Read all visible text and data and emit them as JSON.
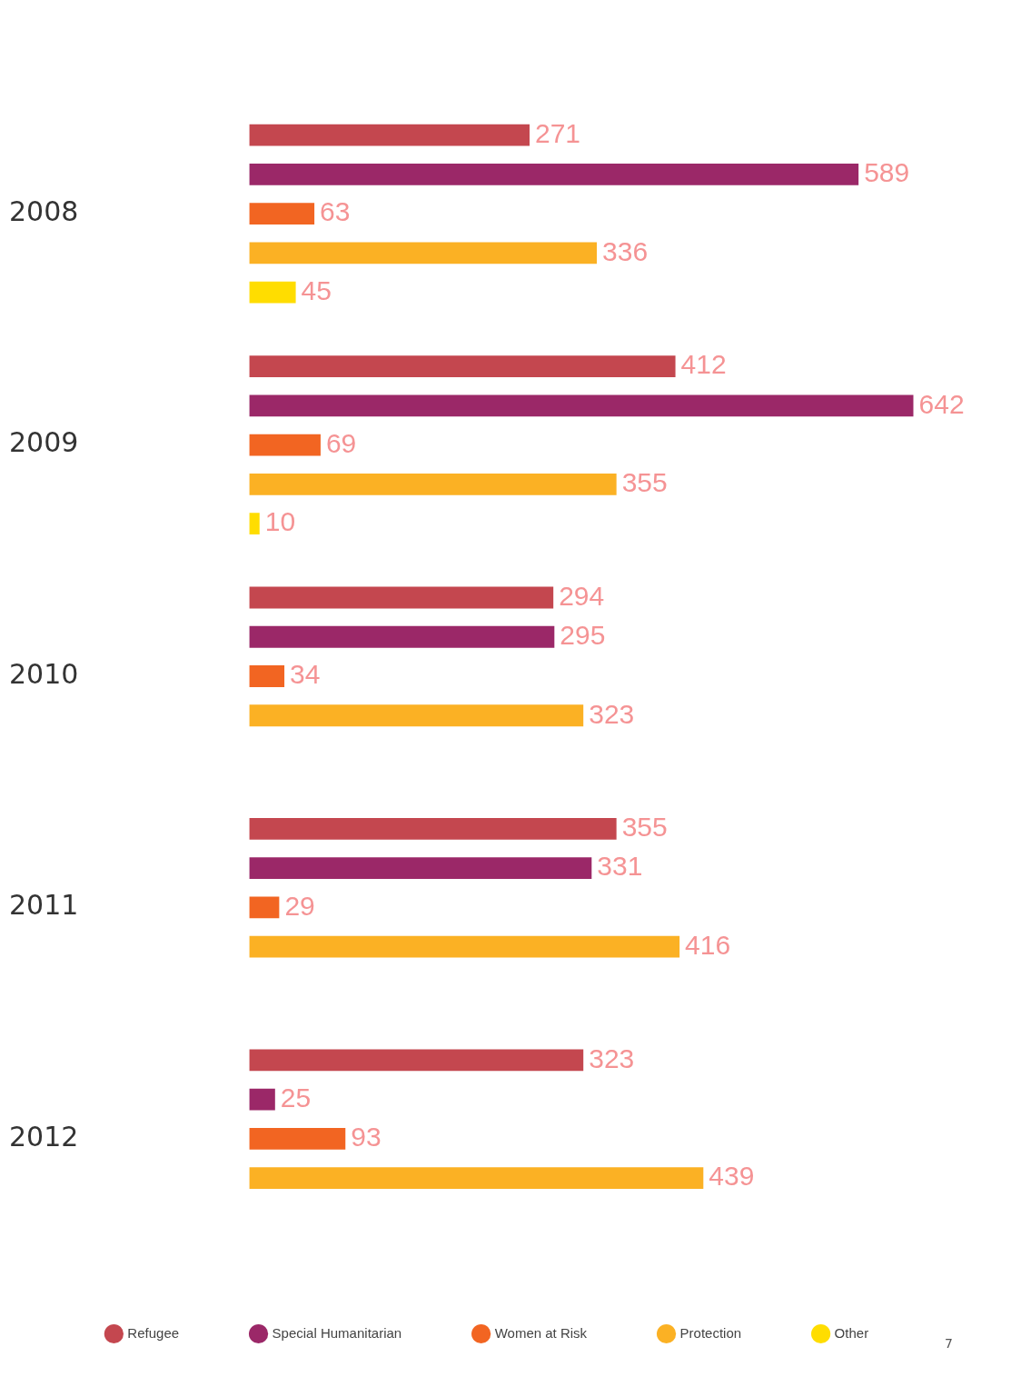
{
  "chart_data": {
    "type": "bar",
    "orientation": "horizontal",
    "tick_labels": "y",
    "data_labels": true,
    "grid": false,
    "legend": "bottom",
    "categories": [
      "2008",
      "2009",
      "2010",
      "2011",
      "2012"
    ],
    "series": [
      {
        "name": "Refugee",
        "color": "#c4474f",
        "values": [
          271,
          412,
          294,
          355,
          323
        ]
      },
      {
        "name": "Special Humanitarian",
        "color": "#9b2868",
        "values": [
          589,
          642,
          295,
          331,
          25
        ]
      },
      {
        "name": "Women at Risk",
        "color": "#f26522",
        "values": [
          63,
          69,
          34,
          29,
          93
        ]
      },
      {
        "name": "Protection",
        "color": "#fbb124",
        "values": [
          336,
          355,
          323,
          416,
          439
        ]
      },
      {
        "name": "Other",
        "color": "#ffdd00",
        "values": [
          45,
          10,
          null,
          null,
          null
        ]
      }
    ],
    "annotations": [
      "7"
    ]
  }
}
